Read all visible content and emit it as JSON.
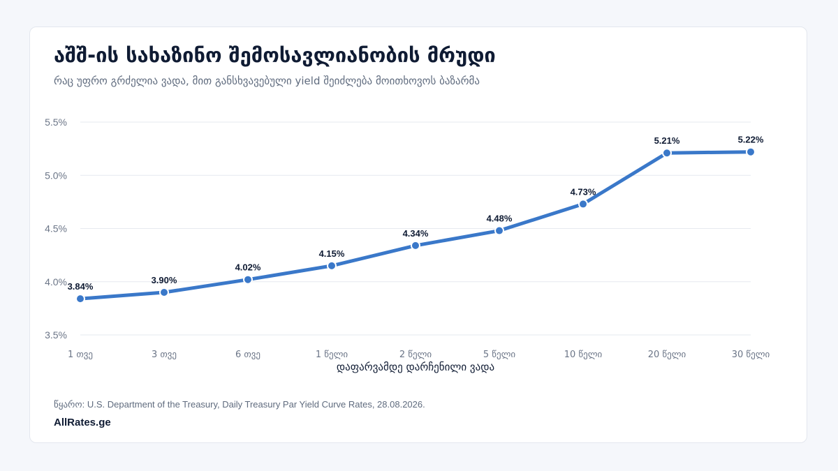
{
  "header": {
    "title": "აშშ-ის სახაზინო შემოსავლიანობის მრუდი",
    "subtitle": "რაც უფრო გრძელია ვადა, მით განსხვავებული yield შეიძლება მოითხოვოს ბაზარმა"
  },
  "chart_data": {
    "type": "line",
    "categories": [
      "1 თვე",
      "3 თვე",
      "6 თვე",
      "1 წელი",
      "2 წელი",
      "5 წელი",
      "10 წელი",
      "20 წელი",
      "30 წელი"
    ],
    "series": [
      {
        "values": [
          3.84,
          3.9,
          4.02,
          4.15,
          4.34,
          4.48,
          4.73,
          5.21,
          5.22
        ]
      }
    ],
    "data_labels": [
      "3.84%",
      "3.90%",
      "4.02%",
      "4.15%",
      "4.34%",
      "4.48%",
      "4.73%",
      "5.21%",
      "5.22%"
    ],
    "xlabel": "დაფარვამდე დარჩენილი ვადა",
    "ylabel": "",
    "ylim": [
      3.5,
      5.5
    ],
    "yticks": [
      3.5,
      4.0,
      4.5,
      5.0,
      5.5
    ],
    "ytick_labels": [
      "3.5%",
      "4.0%",
      "4.5%",
      "5.0%",
      "5.5%"
    ],
    "grid": true,
    "line_color": "#3a78c9"
  },
  "footer": {
    "source": "წყარო: U.S. Department of the Treasury, Daily Treasury Par Yield Curve Rates, 28.08.2026.",
    "brand": "AllRates.ge"
  }
}
